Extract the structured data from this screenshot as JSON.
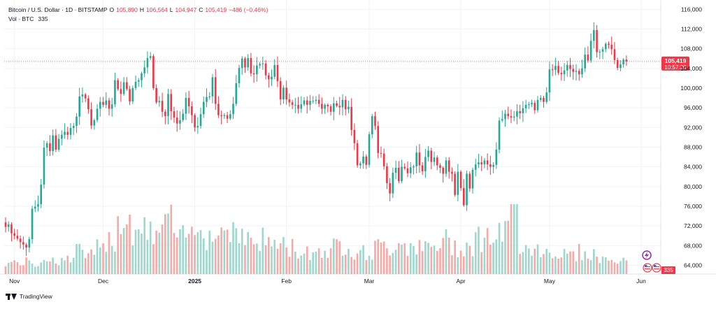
{
  "header": {
    "symbol": "Bitcoin / U.S. Dollar · 1D · BITSTAMP",
    "open_label": "O",
    "open_value": "105,890",
    "high_label": "H",
    "high_value": "106,564",
    "low_label": "L",
    "low_value": "104,947",
    "close_label": "C",
    "close_value": "105,419",
    "change_value": "−486 (−0.46%)",
    "vol_label": "Vol · BTC",
    "vol_value": "335"
  },
  "price_tag": {
    "price": "105,419",
    "countdown": "10:57:20"
  },
  "volume_tag": {
    "value": "335"
  },
  "footer": {
    "brand": "TradingView"
  },
  "colors": {
    "up": "#22ab94",
    "down": "#f23645",
    "up_vol": "#9fd7cd",
    "down_vol": "#f7a9a7",
    "grid": "#f0f3fa",
    "axis_text": "#131722"
  },
  "chart_data": {
    "type": "candlestick",
    "x_axis": {
      "tick_labels": [
        "Nov",
        "Dec",
        "2025",
        "Feb",
        "Mar",
        "Apr",
        "May",
        "Jun"
      ],
      "tick_dates": [
        "2024-11-01",
        "2024-12-01",
        "2025-01-01",
        "2025-02-01",
        "2025-03-01",
        "2025-04-01",
        "2025-05-01",
        "2025-06-01"
      ]
    },
    "y_axis": {
      "ticks": [
        64000,
        68000,
        72000,
        76000,
        80000,
        84000,
        88000,
        92000,
        96000,
        100000,
        104000,
        108000,
        112000,
        116000
      ],
      "tick_labels": [
        "64,000",
        "68,000",
        "72,000",
        "76,000",
        "80,000",
        "84,000",
        "88,000",
        "92,000",
        "96,000",
        "100,000",
        "104,000",
        "108,000",
        "112,000",
        "116,000"
      ],
      "range": [
        62000,
        117000
      ],
      "side": "right"
    },
    "last_close": 105419,
    "start_date": "2024-10-29",
    "closes": [
      71800,
      72300,
      70500,
      70000,
      69400,
      68700,
      68200,
      67600,
      69300,
      75500,
      75900,
      76400,
      80400,
      87900,
      88800,
      87200,
      90400,
      87500,
      89700,
      90500,
      91100,
      90500,
      91900,
      92300,
      94200,
      98300,
      98700,
      97900,
      95700,
      92400,
      93500,
      95800,
      97200,
      96600,
      97500,
      95800,
      96700,
      101600,
      99800,
      98800,
      101200,
      99800,
      97300,
      100000,
      101300,
      101600,
      103000,
      104200,
      106100,
      106500,
      100000,
      97100,
      97400,
      95200,
      94300,
      98800,
      95300,
      94000,
      92800,
      93500,
      94800,
      98000,
      96300,
      94500,
      92000,
      92300,
      94700,
      97200,
      98200,
      98300,
      102200,
      96800,
      94500,
      94300,
      94500,
      93800,
      94700,
      96800,
      101000,
      104100,
      106000,
      104200,
      106100,
      103000,
      102800,
      104600,
      104900,
      105000,
      102600,
      101800,
      102300,
      104700,
      101400,
      97700,
      100100,
      97700,
      97100,
      96600,
      96600,
      95800,
      96700,
      97500,
      96600,
      97400,
      97400,
      97600,
      96800,
      95800,
      96600,
      96300,
      95200,
      96900,
      96400,
      96100,
      97600,
      95700,
      96200,
      91500,
      88800,
      84300,
      84700,
      86100,
      84400,
      90600,
      94300,
      92300,
      86800,
      86700,
      84100,
      80700,
      78600,
      82800,
      83800,
      81100,
      84000,
      83700,
      82700,
      83900,
      84100,
      86900,
      84300,
      83100,
      86000,
      87300,
      85000,
      85900,
      84300,
      83800,
      82600,
      85300,
      83000,
      82600,
      78300,
      83000,
      79700,
      76200,
      82600,
      79600,
      83400,
      84500,
      84900,
      84500,
      85300,
      84500,
      84000,
      84400,
      87500,
      93400,
      93700,
      94800,
      94300,
      94000,
      94200,
      95300,
      94900,
      95900,
      96600,
      96700,
      97000,
      95500,
      97600,
      98000,
      97200,
      99100,
      103800,
      103700,
      104500,
      103100,
      102800,
      103600,
      104700,
      103900,
      103300,
      103500,
      102800,
      104000,
      106800,
      105600,
      109600,
      111800,
      107300,
      107400,
      107900,
      109000,
      108800,
      107900,
      105700,
      104100,
      104800,
      105800,
      105419
    ],
    "volume_sample": [
      28,
      30,
      25,
      40,
      34,
      36,
      58,
      45,
      62,
      90,
      140,
      120,
      105,
      100,
      132,
      88,
      100,
      145,
      96,
      110,
      124,
      88,
      82,
      84,
      73,
      65,
      58,
      55,
      60,
      68,
      75,
      60,
      53,
      66,
      68,
      80,
      74,
      63,
      64,
      82,
      70,
      72,
      90,
      94,
      95,
      152,
      80,
      64,
      58,
      55,
      48,
      54,
      50,
      38,
      35,
      30
    ],
    "volume_unit": "BTC"
  }
}
